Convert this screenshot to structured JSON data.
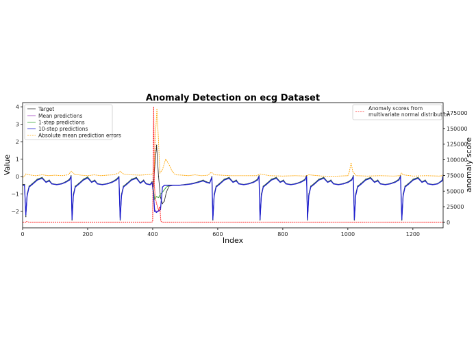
{
  "chart_data": {
    "type": "line",
    "title": "Anomaly Detection on ecg Dataset",
    "xlabel": "Index",
    "ylabel": "Value",
    "y2label": "anomaly score",
    "xlim": [
      0,
      1293
    ],
    "ylim": [
      -2.94,
      4.24
    ],
    "y2lim": [
      -8750,
      191400
    ],
    "xticks": [
      0,
      200,
      400,
      600,
      800,
      1000,
      1200
    ],
    "yticks": [
      -2,
      -1,
      0,
      1,
      2,
      3,
      4
    ],
    "y2ticks": [
      0,
      25000,
      50000,
      75000,
      100000,
      125000,
      150000,
      175000
    ],
    "grid": false,
    "legend_left": {
      "placement": "top-left",
      "entries": [
        "Target",
        "Mean predictions",
        "1-step predictions",
        "10-step predictions",
        "Absolute mean prediction errors"
      ]
    },
    "legend_right": {
      "placement": "top-right",
      "entries": [
        "Anomaly scores from",
        "multivariate normal distribution"
      ]
    },
    "colors": {
      "target": "#333333",
      "mean": "#a040c0",
      "one_step": "#2ca02c",
      "ten_step": "#1f1fd0",
      "error": "#ffa500",
      "score": "#ff2020"
    },
    "x": [
      0,
      6,
      10,
      14,
      20,
      30,
      45,
      60,
      72,
      82,
      90,
      105,
      120,
      132,
      144,
      149,
      152,
      156,
      162,
      172,
      187,
      200,
      212,
      222,
      230,
      245,
      260,
      275,
      288,
      296,
      300,
      304,
      310,
      320,
      335,
      350,
      362,
      372,
      380,
      392,
      398,
      402,
      406,
      412,
      418,
      424,
      430,
      436,
      442,
      450,
      465,
      480,
      500,
      520,
      540,
      555,
      565,
      575,
      582,
      585,
      589,
      595,
      605,
      620,
      635,
      647,
      657,
      665,
      680,
      695,
      710,
      722,
      727,
      730,
      734,
      740,
      750,
      765,
      780,
      792,
      802,
      810,
      825,
      840,
      855,
      868,
      873,
      876,
      880,
      886,
      896,
      911,
      926,
      938,
      948,
      956,
      971,
      986,
      1001,
      1012,
      1017,
      1020,
      1024,
      1030,
      1040,
      1055,
      1070,
      1082,
      1092,
      1100,
      1115,
      1130,
      1145,
      1157,
      1162,
      1166,
      1170,
      1176,
      1186,
      1201,
      1216,
      1228,
      1238,
      1246,
      1261,
      1276,
      1290,
      1293
    ],
    "series": [
      {
        "name": "Target",
        "y": [
          -0.45,
          -0.45,
          -2.3,
          -1.0,
          -0.55,
          -0.4,
          -0.15,
          -0.05,
          -0.3,
          -0.2,
          -0.4,
          -0.45,
          -0.4,
          -0.3,
          -0.15,
          0.05,
          -2.5,
          -1.0,
          -0.55,
          -0.4,
          -0.15,
          -0.02,
          -0.3,
          -0.2,
          -0.4,
          -0.45,
          -0.4,
          -0.3,
          -0.15,
          0.0,
          -2.5,
          -1.0,
          -0.55,
          -0.4,
          -0.15,
          -0.05,
          -0.35,
          -0.2,
          -0.4,
          -0.45,
          -0.3,
          -0.6,
          0.5,
          1.8,
          0.0,
          -1.2,
          -1.55,
          -1.4,
          -0.9,
          -0.55,
          -0.5,
          -0.5,
          -0.45,
          -0.4,
          -0.3,
          -0.2,
          -0.3,
          -0.35,
          0.0,
          -2.5,
          -1.0,
          -0.55,
          -0.4,
          -0.15,
          -0.05,
          -0.3,
          -0.2,
          -0.4,
          -0.45,
          -0.4,
          -0.3,
          -0.15,
          0.05,
          -2.5,
          -1.0,
          -0.55,
          -0.4,
          -0.15,
          -0.05,
          -0.3,
          -0.2,
          -0.4,
          -0.45,
          -0.4,
          -0.3,
          -0.15,
          0.05,
          -2.5,
          -1.0,
          -0.55,
          -0.4,
          -0.15,
          -0.05,
          -0.3,
          -0.2,
          -0.4,
          -0.45,
          -0.4,
          -0.3,
          -0.15,
          0.05,
          -2.5,
          -1.0,
          -0.55,
          -0.4,
          -0.15,
          -0.05,
          -0.3,
          -0.2,
          -0.4,
          -0.45,
          -0.4,
          -0.3,
          -0.15,
          0.05,
          -2.5,
          -1.0,
          -0.55,
          -0.4,
          -0.15,
          -0.05,
          -0.3,
          -0.2,
          -0.4,
          -0.45,
          -0.4,
          -0.2,
          0.1
        ]
      },
      {
        "name": "Mean predictions",
        "y": [
          -0.5,
          -0.5,
          -2.2,
          -1.1,
          -0.6,
          -0.45,
          -0.2,
          -0.1,
          -0.33,
          -0.25,
          -0.42,
          -0.47,
          -0.42,
          -0.33,
          -0.2,
          0.0,
          -2.45,
          -1.1,
          -0.6,
          -0.45,
          -0.2,
          -0.08,
          -0.33,
          -0.25,
          -0.42,
          -0.47,
          -0.42,
          -0.33,
          -0.2,
          -0.05,
          -2.45,
          -1.1,
          -0.6,
          -0.45,
          -0.2,
          -0.1,
          -0.38,
          -0.25,
          -0.42,
          -0.47,
          -0.35,
          -0.8,
          -1.9,
          -2.0,
          -2.0,
          -1.9,
          -0.6,
          -0.5,
          -0.5,
          -0.5,
          -0.5,
          -0.5,
          -0.47,
          -0.42,
          -0.33,
          -0.25,
          -0.33,
          -0.38,
          -0.05,
          -2.45,
          -1.1,
          -0.6,
          -0.45,
          -0.2,
          -0.1,
          -0.33,
          -0.25,
          -0.42,
          -0.47,
          -0.42,
          -0.33,
          -0.2,
          0.0,
          -2.45,
          -1.1,
          -0.6,
          -0.45,
          -0.2,
          -0.1,
          -0.33,
          -0.25,
          -0.42,
          -0.47,
          -0.42,
          -0.33,
          -0.2,
          0.0,
          -2.45,
          -1.1,
          -0.6,
          -0.45,
          -0.2,
          -0.1,
          -0.33,
          -0.25,
          -0.42,
          -0.47,
          -0.42,
          -0.33,
          -0.2,
          0.0,
          -2.45,
          -1.1,
          -0.6,
          -0.45,
          -0.2,
          -0.1,
          -0.33,
          -0.25,
          -0.42,
          -0.47,
          -0.42,
          -0.33,
          -0.2,
          0.0,
          -2.45,
          -1.1,
          -0.6,
          -0.45,
          -0.2,
          -0.1,
          -0.33,
          -0.25,
          -0.42,
          -0.47,
          -0.42,
          -0.25,
          0.05
        ]
      },
      {
        "name": "1-step predictions",
        "y": [
          -0.48,
          -0.48,
          -2.25,
          -1.05,
          -0.57,
          -0.42,
          -0.17,
          -0.07,
          -0.31,
          -0.22,
          -0.41,
          -0.46,
          -0.41,
          -0.31,
          -0.17,
          0.03,
          -2.48,
          -1.05,
          -0.57,
          -0.42,
          -0.17,
          -0.04,
          -0.31,
          -0.22,
          -0.41,
          -0.46,
          -0.41,
          -0.31,
          -0.17,
          -0.02,
          -2.48,
          -1.05,
          -0.57,
          -0.42,
          -0.17,
          -0.07,
          -0.36,
          -0.22,
          -0.41,
          -0.46,
          -0.32,
          -0.7,
          -1.3,
          -1.15,
          -1.2,
          -1.0,
          -0.9,
          -0.75,
          -0.6,
          -0.5,
          -0.5,
          -0.5,
          -0.46,
          -0.41,
          -0.31,
          -0.22,
          -0.31,
          -0.36,
          -0.02,
          -2.48,
          -1.05,
          -0.57,
          -0.42,
          -0.17,
          -0.07,
          -0.31,
          -0.22,
          -0.41,
          -0.46,
          -0.41,
          -0.31,
          -0.17,
          0.03,
          -2.48,
          -1.05,
          -0.57,
          -0.42,
          -0.17,
          -0.07,
          -0.31,
          -0.22,
          -0.41,
          -0.46,
          -0.41,
          -0.31,
          -0.17,
          0.03,
          -2.48,
          -1.05,
          -0.57,
          -0.42,
          -0.17,
          -0.07,
          -0.31,
          -0.22,
          -0.41,
          -0.46,
          -0.41,
          -0.31,
          -0.17,
          0.03,
          -2.48,
          -1.05,
          -0.57,
          -0.42,
          -0.17,
          -0.07,
          -0.31,
          -0.22,
          -0.41,
          -0.46,
          -0.41,
          -0.31,
          -0.17,
          0.03,
          -2.48,
          -1.05,
          -0.57,
          -0.42,
          -0.17,
          -0.07,
          -0.31,
          -0.22,
          -0.41,
          -0.46,
          -0.41,
          -0.22,
          0.08
        ]
      },
      {
        "name": "10-step predictions",
        "y": [
          -0.5,
          -0.5,
          -2.2,
          -1.1,
          -0.6,
          -0.45,
          -0.2,
          -0.1,
          -0.33,
          -0.25,
          -0.42,
          -0.47,
          -0.42,
          -0.33,
          -0.2,
          0.0,
          -2.45,
          -1.1,
          -0.6,
          -0.45,
          -0.2,
          -0.08,
          -0.33,
          -0.25,
          -0.42,
          -0.47,
          -0.42,
          -0.33,
          -0.2,
          -0.05,
          -2.45,
          -1.1,
          -0.6,
          -0.45,
          -0.2,
          -0.1,
          -0.38,
          -0.25,
          -0.42,
          -0.47,
          -0.35,
          -0.9,
          -2.0,
          -2.05,
          -1.95,
          -1.9,
          -0.6,
          -0.5,
          -0.5,
          -0.5,
          -0.5,
          -0.5,
          -0.47,
          -0.42,
          -0.33,
          -0.25,
          -0.33,
          -0.38,
          -0.05,
          -2.45,
          -1.1,
          -0.6,
          -0.45,
          -0.2,
          -0.1,
          -0.33,
          -0.25,
          -0.42,
          -0.47,
          -0.42,
          -0.33,
          -0.2,
          0.0,
          -2.45,
          -1.1,
          -0.6,
          -0.45,
          -0.2,
          -0.1,
          -0.33,
          -0.25,
          -0.42,
          -0.47,
          -0.42,
          -0.33,
          -0.2,
          0.0,
          -2.45,
          -1.1,
          -0.6,
          -0.45,
          -0.2,
          -0.1,
          -0.33,
          -0.25,
          -0.42,
          -0.47,
          -0.42,
          -0.33,
          -0.2,
          0.0,
          -2.45,
          -1.1,
          -0.6,
          -0.45,
          -0.2,
          -0.1,
          -0.33,
          -0.25,
          -0.42,
          -0.47,
          -0.42,
          -0.33,
          -0.2,
          0.0,
          -2.45,
          -1.1,
          -0.6,
          -0.45,
          -0.2,
          -0.1,
          -0.33,
          -0.25,
          -0.42,
          -0.47,
          -0.42,
          -0.25,
          0.05
        ]
      }
    ],
    "errors": {
      "name": "Absolute mean prediction errors",
      "x": [
        0,
        5,
        10,
        20,
        40,
        60,
        80,
        100,
        120,
        140,
        150,
        160,
        180,
        200,
        220,
        240,
        260,
        280,
        295,
        300,
        310,
        330,
        360,
        380,
        400,
        405,
        409,
        413,
        418,
        422,
        430,
        440,
        450,
        460,
        470,
        490,
        510,
        530,
        550,
        570,
        580,
        590,
        610,
        640,
        680,
        720,
        730,
        760,
        800,
        840,
        870,
        880,
        920,
        960,
        1000,
        1005,
        1010,
        1015,
        1025,
        1060,
        1100,
        1140,
        1160,
        1165,
        1170,
        1200,
        1240,
        1280,
        1293
      ],
      "y": [
        -0.05,
        0.0,
        0.15,
        0.1,
        0.05,
        0.1,
        0.05,
        0.08,
        0.05,
        0.1,
        0.3,
        0.12,
        0.08,
        0.05,
        0.1,
        0.05,
        0.08,
        0.1,
        0.2,
        0.3,
        0.15,
        0.1,
        0.08,
        0.1,
        0.15,
        0.5,
        2.5,
        3.9,
        2.0,
        0.2,
        0.4,
        1.0,
        0.7,
        0.3,
        0.1,
        0.08,
        0.05,
        0.1,
        0.05,
        0.08,
        0.25,
        0.1,
        0.08,
        0.05,
        0.05,
        0.05,
        0.15,
        0.05,
        0.03,
        0.05,
        0.03,
        0.1,
        0.03,
        0.02,
        0.05,
        0.3,
        0.8,
        0.3,
        0.05,
        0.03,
        0.05,
        0.03,
        0.05,
        0.2,
        0.1,
        0.03,
        0.05,
        0.03,
        0.05
      ]
    },
    "anomaly_scores": {
      "name": "Anomaly scores from multivariate normal distribution",
      "x": [
        0,
        10,
        12,
        20,
        395,
        400,
        403,
        405,
        408,
        412,
        418,
        422,
        425,
        430,
        600,
        1293
      ],
      "y": [
        0,
        0,
        1500,
        0,
        0,
        1000,
        185000,
        60000,
        40000,
        30000,
        20000,
        25000,
        2000,
        0,
        0,
        0
      ]
    }
  }
}
